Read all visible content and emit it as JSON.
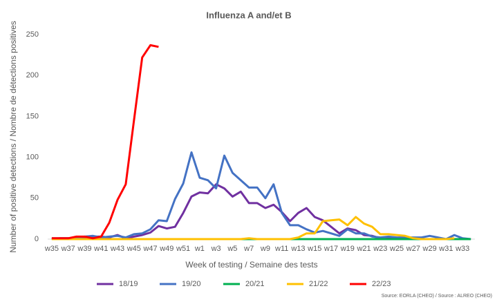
{
  "chart_data": {
    "type": "line",
    "title": "Influenza A and/et B",
    "x_label": "Week of testing / Semaine des tests",
    "y_label": "Number of positive detections / Nombre de détections positives",
    "source": "Source: EORLA (CHEO) / Source : ALREO (CHEO)",
    "categories": [
      "w35",
      null,
      "w37",
      null,
      "w39",
      null,
      "w41",
      null,
      "w43",
      null,
      "w45",
      null,
      "w47",
      null,
      "w49",
      null,
      "w51",
      null,
      "w1",
      null,
      "w3",
      null,
      "w5",
      null,
      "w7",
      null,
      "w9",
      null,
      "w11",
      null,
      "w13",
      null,
      "w15",
      null,
      "w17",
      null,
      "w19",
      null,
      "w21",
      null,
      "w23",
      null,
      "w25",
      null,
      "w27",
      null,
      "w29",
      null,
      "w31",
      null,
      "w33",
      null
    ],
    "ylim": [
      0,
      250
    ],
    "yticks": [
      0,
      50,
      100,
      150,
      200,
      250
    ],
    "grid": false,
    "legend": "bottom",
    "series": [
      {
        "name": "18/19",
        "color": "#7030a0",
        "values": [
          0,
          1,
          1,
          2,
          1,
          3,
          3,
          2,
          5,
          1,
          3,
          5,
          8,
          16,
          13,
          15,
          32,
          52,
          57,
          56,
          67,
          62,
          52,
          58,
          44,
          44,
          38,
          42,
          33,
          22,
          32,
          38,
          27,
          23,
          15,
          7,
          13,
          11,
          5,
          4,
          1,
          2,
          1,
          1,
          1,
          0,
          0,
          0,
          0,
          0,
          0,
          0
        ]
      },
      {
        "name": "19/20",
        "color": "#4472c4",
        "values": [
          1,
          1,
          1,
          2,
          3,
          4,
          2,
          3,
          4,
          2,
          6,
          7,
          12,
          23,
          22,
          49,
          68,
          106,
          75,
          72,
          62,
          102,
          81,
          72,
          63,
          63,
          50,
          67,
          32,
          17,
          17,
          12,
          8,
          10,
          7,
          4,
          12,
          7,
          7,
          3,
          2,
          3,
          2,
          2,
          2,
          2,
          4,
          2,
          0,
          5,
          1,
          0
        ]
      },
      {
        "name": "20/21",
        "color": "#00b050",
        "values": [
          0,
          0,
          0,
          0,
          0,
          0,
          0,
          0,
          0,
          0,
          0,
          0,
          0,
          0,
          0,
          0,
          0,
          0,
          0,
          0,
          0,
          0,
          0,
          0,
          0,
          0,
          0,
          0,
          0,
          0,
          0,
          0,
          0,
          0,
          0,
          0,
          0,
          0,
          0,
          0,
          0,
          0,
          0,
          0,
          0,
          0,
          0,
          0,
          0,
          0,
          0,
          0
        ]
      },
      {
        "name": "21/22",
        "color": "#ffc000",
        "values": [
          0,
          0,
          0,
          0,
          0,
          0,
          0,
          0,
          0,
          0,
          0,
          0,
          0,
          0,
          0,
          0,
          0,
          0,
          0,
          0,
          0,
          0,
          0,
          0,
          1,
          0,
          0,
          0,
          0,
          0,
          2,
          7,
          7,
          22,
          23,
          24,
          17,
          27,
          19,
          15,
          6,
          6,
          5,
          4,
          1,
          0,
          0,
          0,
          0,
          1,
          null,
          null
        ]
      },
      {
        "name": "22/23",
        "color": "#ff0000",
        "values": [
          1,
          1,
          1,
          3,
          3,
          1,
          3,
          20,
          48,
          67,
          145,
          222,
          237,
          235,
          null,
          null,
          null,
          null,
          null,
          null,
          null,
          null,
          null,
          null,
          null,
          null,
          null,
          null,
          null,
          null,
          null,
          null,
          null,
          null,
          null,
          null,
          null,
          null,
          null,
          null,
          null,
          null,
          null,
          null,
          null,
          null,
          null,
          null,
          null,
          null,
          null,
          null
        ]
      }
    ]
  }
}
